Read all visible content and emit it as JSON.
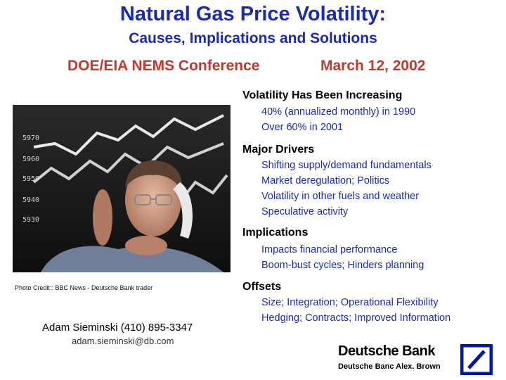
{
  "header": {
    "title": "Natural Gas Price Volatility:",
    "subtitle": "Causes, Implications and Solutions",
    "conference": "DOE/EIA NEMS Conference",
    "date": "March 12, 2002"
  },
  "photo": {
    "credit": "Photo Credit:: BBC News - Deutsche Bank trader",
    "board_numbers": [
      "5970",
      "5960",
      "5950",
      "5940",
      "5930"
    ]
  },
  "contact": {
    "name_phone": "Adam Sieminski (410) 895-3347",
    "email": "adam.sieminski@db.com"
  },
  "sections": [
    {
      "heading": "Volatility Has Been Increasing",
      "items": [
        "40% (annualized monthly) in 1990",
        "Over 60% in 2001"
      ]
    },
    {
      "heading": "Major Drivers",
      "items": [
        "Shifting supply/demand fundamentals",
        "Market deregulation; Politics",
        "Volatility in other fuels and weather",
        "Speculative activity"
      ]
    },
    {
      "heading": "Implications",
      "items": [
        "Impacts financial performance",
        "Boom-bust cycles; Hinders planning"
      ]
    },
    {
      "heading": "Offsets",
      "items": [
        "Size; Integration; Operational Flexibility",
        "Hedging; Contracts; Improved Information"
      ]
    }
  ],
  "brand": {
    "name": "Deutsche Bank",
    "sub": "Deutsche Banc Alex. Brown",
    "logo_color": "#0018a8"
  }
}
